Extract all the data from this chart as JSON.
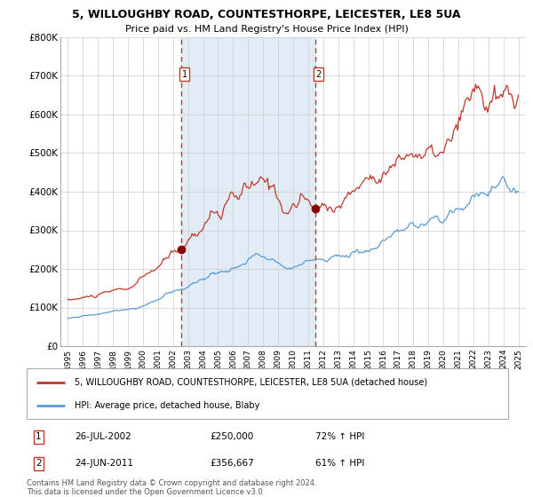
{
  "title1": "5, WILLOUGHBY ROAD, COUNTESTHORPE, LEICESTER, LE8 5UA",
  "title2": "Price paid vs. HM Land Registry's House Price Index (HPI)",
  "legend_line1": "5, WILLOUGHBY ROAD, COUNTESTHORPE, LEICESTER, LE8 5UA (detached house)",
  "legend_line2": "HPI: Average price, detached house, Blaby",
  "annotation1_date": "26-JUL-2002",
  "annotation1_price": "£250,000",
  "annotation1_hpi": "72% ↑ HPI",
  "annotation2_date": "24-JUN-2011",
  "annotation2_price": "£356,667",
  "annotation2_hpi": "61% ↑ HPI",
  "footnote": "Contains HM Land Registry data © Crown copyright and database right 2024.\nThis data is licensed under the Open Government Licence v3.0.",
  "red_color": "#c0392b",
  "blue_color": "#5b9bd5",
  "bg_shaded": "#dce9f5",
  "vline1_x": 2002.57,
  "vline2_x": 2011.48,
  "marker1_x": 2002.57,
  "marker1_y": 250000,
  "marker2_x": 2011.48,
  "marker2_y": 356667,
  "ylim": [
    0,
    800000
  ],
  "xlim": [
    1994.5,
    2025.5
  ],
  "yticks": [
    0,
    100000,
    200000,
    300000,
    400000,
    500000,
    600000,
    700000,
    800000
  ],
  "ytick_labels": [
    "£0",
    "£100K",
    "£200K",
    "£300K",
    "£400K",
    "£500K",
    "£600K",
    "£700K",
    "£800K"
  ],
  "xticks": [
    1995,
    1996,
    1997,
    1998,
    1999,
    2000,
    2001,
    2002,
    2003,
    2004,
    2005,
    2006,
    2007,
    2008,
    2009,
    2010,
    2011,
    2012,
    2013,
    2014,
    2015,
    2016,
    2017,
    2018,
    2019,
    2020,
    2021,
    2022,
    2023,
    2024,
    2025
  ]
}
